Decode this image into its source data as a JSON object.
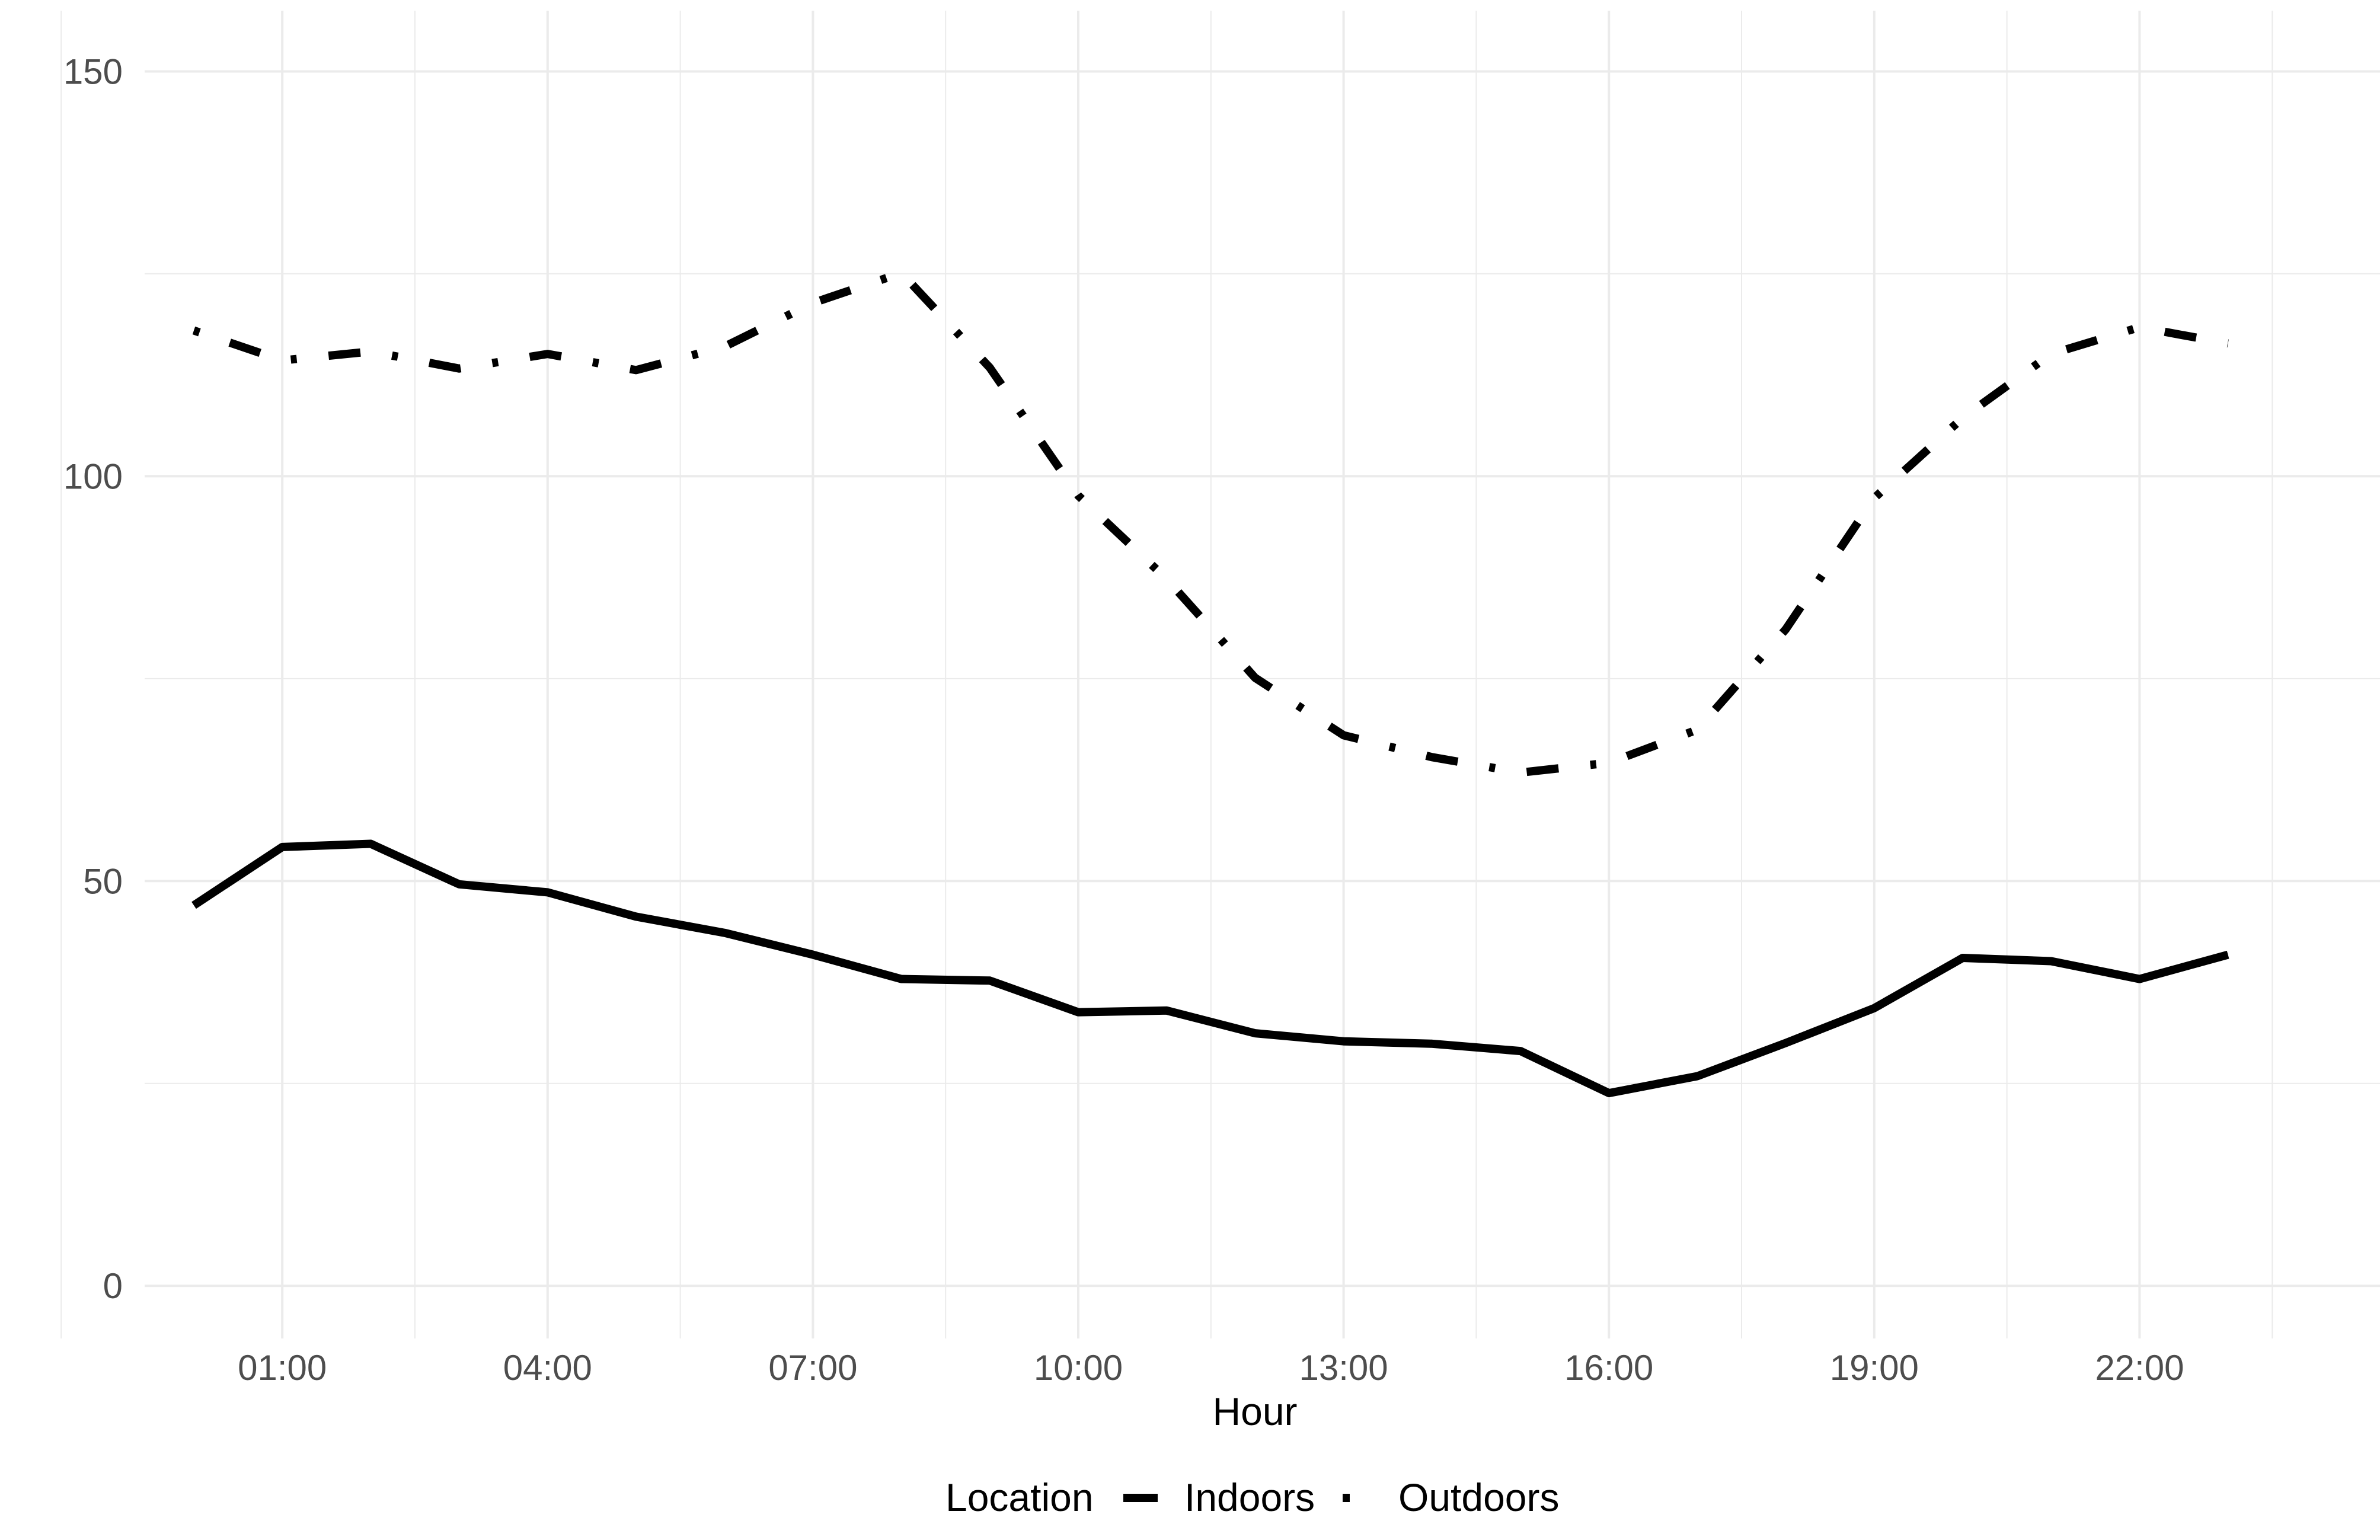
{
  "chart_data": {
    "type": "line",
    "x": [
      "00:00",
      "01:00",
      "02:00",
      "03:00",
      "04:00",
      "05:00",
      "06:00",
      "07:00",
      "08:00",
      "09:00",
      "10:00",
      "11:00",
      "12:00",
      "13:00",
      "14:00",
      "15:00",
      "16:00",
      "17:00",
      "18:00",
      "19:00",
      "20:00",
      "21:00",
      "22:00",
      "23:00"
    ],
    "x_tick_labels": [
      "01:00",
      "04:00",
      "07:00",
      "10:00",
      "13:00",
      "16:00",
      "19:00",
      "22:00"
    ],
    "y_tick_labels": [
      "0",
      "50",
      "100",
      "150"
    ],
    "ylim": [
      -6.5,
      157.5
    ],
    "xlabel": "Hour",
    "ylabel": "",
    "legend_title": "Location",
    "legend_position": "bottom",
    "grid": true,
    "series": [
      {
        "name": "Indoors",
        "linetype": "solid",
        "values": [
          47,
          54.2,
          54.6,
          49.6,
          48.6,
          45.6,
          43.6,
          40.9,
          37.9,
          37.7,
          33.8,
          34.0,
          31.2,
          30.2,
          29.9,
          29.0,
          23.8,
          25.9,
          30.0,
          34.3,
          40.5,
          40.1,
          37.9,
          40.9
        ]
      },
      {
        "name": "Outdoors",
        "linetype": "dotdash",
        "values": [
          118,
          114.3,
          115.4,
          113.3,
          115.1,
          113.1,
          116.0,
          121.4,
          125.1,
          113.4,
          97.6,
          87.3,
          75.1,
          68.0,
          65.3,
          63.4,
          64.6,
          68.7,
          81.1,
          97.3,
          107.2,
          115.1,
          118.4,
          116.4
        ]
      }
    ],
    "colors": {
      "line": "#000000",
      "grid": "#ebebeb",
      "tick_text": "#4d4d4d"
    }
  }
}
